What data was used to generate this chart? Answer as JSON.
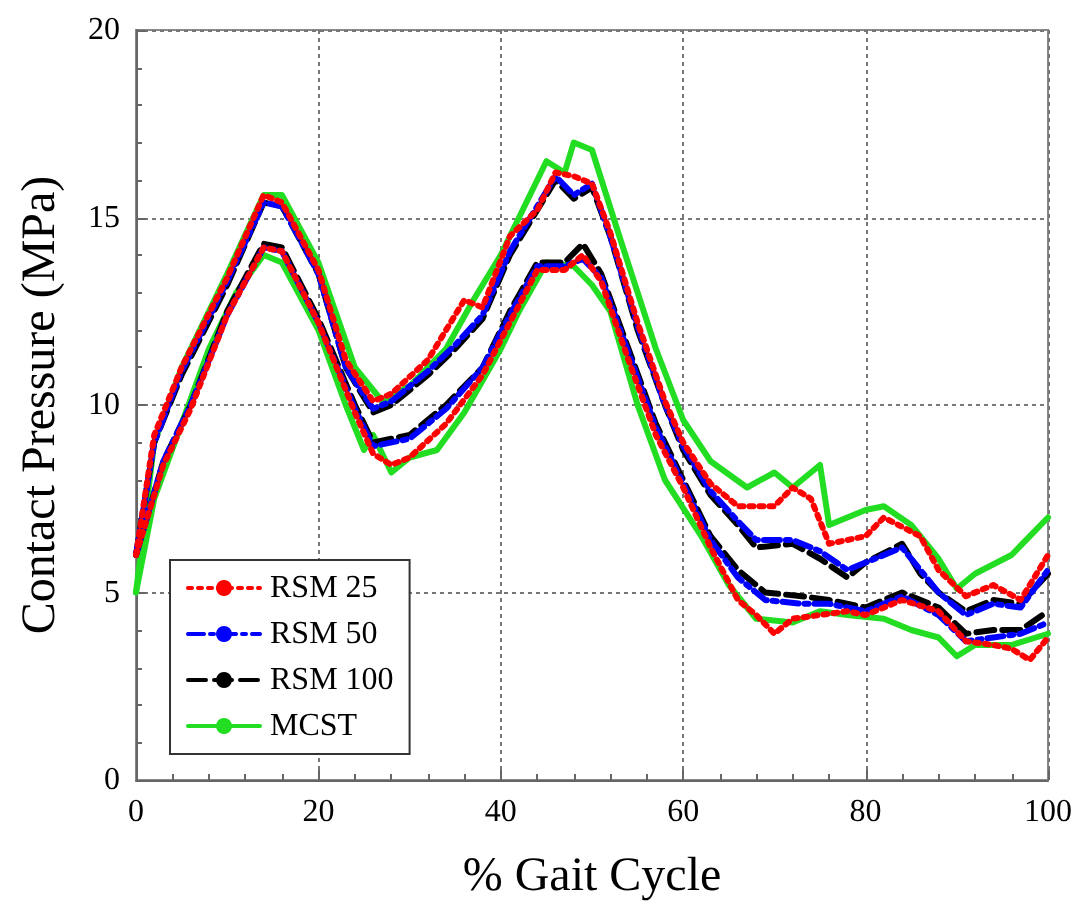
{
  "chart_data": {
    "type": "line",
    "xlabel": "% Gait Cycle",
    "ylabel": "Contact Pressure (MPa)",
    "xlim": [
      0,
      100
    ],
    "xticks": [
      0,
      20,
      40,
      60,
      80,
      100
    ],
    "ylim": [
      0,
      20
    ],
    "yticks": [
      0,
      5,
      10,
      15,
      20
    ],
    "grid": true,
    "legend": "bottom left",
    "marker": "none",
    "series": [
      {
        "name": "RSM 25",
        "color": "#ff0000",
        "line_style": "dotted",
        "x": [
          0,
          2,
          5,
          10,
          14,
          16,
          20,
          23,
          26,
          28,
          32,
          36,
          38,
          41,
          44,
          46,
          48,
          50,
          52,
          55,
          58,
          60,
          63,
          66,
          70,
          72,
          74,
          76,
          80,
          82,
          86,
          88,
          91,
          94,
          97,
          100
        ],
        "values": [
          6,
          9.2,
          11,
          13.4,
          15.6,
          15.4,
          13.6,
          11.2,
          10.1,
          10.3,
          11.2,
          12.8,
          12.6,
          14.5,
          15.2,
          16.2,
          16.1,
          15.9,
          14.6,
          12.2,
          10.1,
          9,
          7.9,
          7.3,
          7.3,
          7.8,
          7.5,
          6.3,
          6.5,
          7,
          6.5,
          5.6,
          4.9,
          5.2,
          4.8,
          6
        ]
      },
      {
        "color": "#ff0000",
        "line_style": "dotted",
        "x": [
          0,
          3,
          6,
          10,
          14,
          16,
          20,
          24,
          26,
          28,
          30,
          34,
          38,
          41,
          44,
          47,
          49,
          51,
          54,
          57,
          60,
          63,
          66,
          68,
          70,
          72,
          75,
          78,
          80,
          84,
          88,
          91,
          94,
          96,
          98,
          100
        ],
        "values": [
          6,
          8.4,
          9.9,
          12.4,
          14.2,
          14.1,
          12.2,
          9.8,
          8.7,
          8.4,
          8.6,
          9.5,
          10.8,
          12.2,
          13.6,
          13.6,
          14,
          13.3,
          11.2,
          9.2,
          7.8,
          6.2,
          4.8,
          4.4,
          3.9,
          4.3,
          4.4,
          4.5,
          4.4,
          4.8,
          4.5,
          3.7,
          3.6,
          3.5,
          3.2,
          3.8
        ]
      },
      {
        "name": "RSM 50",
        "color": "#0000ff",
        "line_style": "dashdot",
        "x": [
          0,
          2,
          5,
          10,
          14,
          16,
          20,
          23,
          26,
          28,
          32,
          35,
          38,
          41,
          44,
          46,
          48,
          50,
          52,
          55,
          58,
          60,
          63,
          66,
          68,
          72,
          75,
          78,
          80,
          84,
          86,
          88,
          91,
          94,
          97,
          100
        ],
        "values": [
          6,
          9,
          10.9,
          13.3,
          15.4,
          15.3,
          13.5,
          11,
          9.9,
          10.1,
          10.9,
          11.6,
          12.4,
          14.1,
          15.3,
          16.1,
          15.6,
          15.9,
          14.5,
          12.1,
          10,
          8.9,
          7.7,
          6.9,
          6.4,
          6.4,
          6.1,
          5.6,
          5.8,
          6.2,
          5.6,
          5,
          4.4,
          4.7,
          4.6,
          5.6
        ]
      },
      {
        "color": "#0000ff",
        "line_style": "dashdot",
        "x": [
          0,
          3,
          6,
          10,
          14,
          16,
          20,
          24,
          26,
          30,
          34,
          38,
          41,
          44,
          47,
          49,
          51,
          54,
          57,
          60,
          63,
          66,
          69,
          73,
          76,
          80,
          84,
          88,
          91,
          94,
          97,
          100
        ],
        "values": [
          6,
          8.5,
          10,
          12.4,
          14.2,
          14.1,
          12.2,
          9.9,
          8.9,
          9.1,
          9.9,
          11,
          12.4,
          13.7,
          13.7,
          13.9,
          13.4,
          11.4,
          9.4,
          7.9,
          6.4,
          5.4,
          4.8,
          4.7,
          4.7,
          4.5,
          4.9,
          4.4,
          3.7,
          3.8,
          3.9,
          4.2
        ]
      },
      {
        "name": "RSM 100",
        "color": "#000000",
        "line_style": "dashed",
        "x": [
          0,
          2,
          5,
          10,
          14,
          16,
          20,
          23,
          26,
          28,
          32,
          35,
          38,
          41,
          44,
          46,
          48,
          50,
          52,
          55,
          58,
          60,
          63,
          66,
          68,
          72,
          75,
          78,
          80,
          84,
          86,
          88,
          91,
          94,
          97,
          100
        ],
        "values": [
          6,
          9,
          10.8,
          13.2,
          15.4,
          15.3,
          13.5,
          11,
          9.8,
          10,
          10.8,
          11.5,
          12.3,
          14,
          15.2,
          16,
          15.5,
          15.8,
          14.5,
          12,
          10,
          8.8,
          7.6,
          6.8,
          6.2,
          6.3,
          5.9,
          5.4,
          5.8,
          6.3,
          5.5,
          5,
          4.5,
          4.8,
          4.7,
          5.5
        ]
      },
      {
        "color": "#000000",
        "line_style": "dashed",
        "x": [
          0,
          3,
          6,
          10,
          14,
          16,
          20,
          24,
          26,
          30,
          34,
          38,
          41,
          44,
          47,
          49,
          51,
          54,
          57,
          60,
          63,
          66,
          69,
          73,
          76,
          80,
          84,
          88,
          91,
          94,
          97,
          100
        ],
        "values": [
          6,
          8.5,
          10,
          12.5,
          14.3,
          14.2,
          12.3,
          10,
          9,
          9.2,
          10,
          11,
          12.5,
          13.8,
          13.8,
          14.3,
          13.5,
          11.5,
          9.5,
          8,
          6.5,
          5.6,
          5,
          4.9,
          4.8,
          4.6,
          5,
          4.6,
          3.9,
          4,
          4,
          4.5
        ]
      },
      {
        "name": "MCST",
        "color": "#22dd22",
        "line_style": "solid",
        "x": [
          0,
          2,
          5,
          10,
          14,
          16,
          20,
          24,
          27,
          30,
          34,
          37,
          40,
          42,
          45,
          47,
          48,
          50,
          53,
          57,
          60,
          63,
          67,
          70,
          72,
          75,
          76,
          80,
          82,
          85,
          88,
          90,
          92,
          96,
          100
        ],
        "values": [
          5,
          9,
          11,
          13.5,
          15.6,
          15.6,
          13.8,
          11,
          10.1,
          10.5,
          11.5,
          12.8,
          14,
          15,
          16.5,
          16.2,
          17,
          16.8,
          14.5,
          11.5,
          9.6,
          8.5,
          7.8,
          8.2,
          7.8,
          8.4,
          6.8,
          7.2,
          7.3,
          6.8,
          5.9,
          5.1,
          5.5,
          6,
          7
        ]
      },
      {
        "color": "#22dd22",
        "line_style": "solid",
        "x": [
          0,
          2,
          5,
          8,
          11,
          14,
          16,
          20,
          23,
          25,
          26,
          28,
          30,
          33,
          36,
          40,
          42,
          45,
          48,
          50,
          52,
          55,
          58,
          62,
          65,
          68,
          72,
          75,
          78,
          82,
          85,
          88,
          90,
          92,
          96,
          100
        ],
        "values": [
          5,
          7.5,
          9.5,
          11.5,
          13,
          14,
          13.8,
          12,
          10,
          8.8,
          9.2,
          8.2,
          8.6,
          8.8,
          9.8,
          11.5,
          12.5,
          13.8,
          13.7,
          13.2,
          12.5,
          10,
          8,
          6.5,
          5.2,
          4.3,
          4.2,
          4.5,
          4.4,
          4.3,
          4,
          3.8,
          3.3,
          3.6,
          3.6,
          3.9
        ]
      }
    ]
  }
}
